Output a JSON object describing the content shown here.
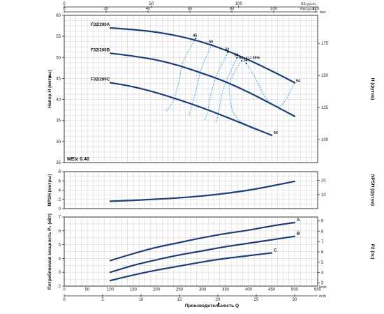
{
  "chart_data": [
    {
      "id": "head",
      "type": "line",
      "ylabel": "Напор H (метры)",
      "y2label": "H (футов)",
      "xlim": [
        0,
        550
      ],
      "ylim": [
        25,
        60
      ],
      "y_ticks": [
        25,
        30,
        35,
        40,
        45,
        50,
        55,
        60
      ],
      "y2_ticks": [
        100,
        125,
        150,
        175
      ],
      "annotation": "MEI≥ 0.40",
      "series": [
        {
          "name": "F32/200A",
          "x": [
            100,
            150,
            200,
            250,
            300,
            350,
            400,
            450,
            500
          ],
          "y": [
            57.0,
            56.6,
            56.0,
            55.0,
            53.6,
            51.7,
            49.4,
            46.8,
            44.0
          ]
        },
        {
          "name": "F32/200B",
          "x": [
            100,
            150,
            200,
            250,
            300,
            350,
            400,
            450,
            500
          ],
          "y": [
            51.0,
            50.3,
            49.4,
            48.0,
            46.2,
            44.2,
            41.7,
            38.9,
            36.0
          ]
        },
        {
          "name": "F32/200C",
          "x": [
            100,
            150,
            200,
            250,
            300,
            350,
            400,
            450
          ],
          "y": [
            44.0,
            43.0,
            41.6,
            39.9,
            38.0,
            35.9,
            33.7,
            31.5
          ]
        }
      ],
      "efficiency": [
        {
          "label": "45",
          "x": [
            285,
            258,
            250,
            238,
            220
          ],
          "y": [
            54.5,
            49.0,
            45.0,
            40.0,
            37.0
          ]
        },
        {
          "label": "50",
          "x": [
            320,
            298,
            288,
            278,
            270
          ],
          "y": [
            53.0,
            47.5,
            43.0,
            39.0,
            36.0
          ]
        },
        {
          "label": "52",
          "x": [
            355,
            330,
            318,
            312,
            305
          ],
          "y": [
            51.2,
            45.5,
            41.0,
            37.5,
            35.0
          ]
        },
        {
          "label": "53",
          "x": [
            375,
            350,
            340,
            335,
            330
          ],
          "y": [
            49.9,
            44.0,
            40.0,
            37.0,
            34.5
          ]
        },
        {
          "label": "54",
          "x": [
            385,
            360,
            360,
            372,
            400,
            430,
            450
          ],
          "y": [
            49.2,
            44.4,
            40.0,
            36.0,
            33.5,
            32.3,
            31.5
          ]
        },
        {
          "label": "54",
          "x": [
            395,
            415,
            440,
            470,
            500
          ],
          "y": [
            48.6,
            45.0,
            40.0,
            38.5,
            44.0
          ]
        }
      ],
      "efficiency_note": "η = 55%"
    },
    {
      "id": "npsh",
      "type": "line",
      "ylabel": "NPSH (метры)",
      "y2label": "NPSH (футов)",
      "xlim": [
        0,
        550
      ],
      "ylim": [
        0,
        8
      ],
      "y_ticks": [
        0,
        2,
        4,
        6,
        8
      ],
      "y2_ticks": [
        10,
        20
      ],
      "series": [
        {
          "x": [
            100,
            150,
            200,
            250,
            300,
            350,
            400,
            450,
            500
          ],
          "y": [
            1.6,
            1.8,
            2.05,
            2.35,
            2.75,
            3.3,
            4.0,
            4.9,
            5.9
          ]
        }
      ]
    },
    {
      "id": "power",
      "type": "line",
      "ylabel": "Потребляемая мощность P₂ (кВт)",
      "y2label": "P2 (лс)",
      "xlabel": "Производительность Q",
      "xlim": [
        0,
        550
      ],
      "ylim": [
        2,
        7
      ],
      "x_ticks": [
        0,
        50,
        100,
        150,
        200,
        250,
        300,
        350,
        400,
        450,
        500,
        550
      ],
      "x_unit": "l/min",
      "y_ticks": [
        2,
        3,
        4,
        5,
        6,
        7
      ],
      "y2_ticks": [
        3,
        4,
        5,
        6,
        7,
        8,
        9
      ],
      "series": [
        {
          "name": "A",
          "x": [
            100,
            150,
            200,
            250,
            300,
            350,
            400,
            450,
            500
          ],
          "y": [
            3.85,
            4.35,
            4.8,
            5.15,
            5.5,
            5.8,
            6.05,
            6.35,
            6.6
          ]
        },
        {
          "name": "B",
          "x": [
            100,
            150,
            200,
            250,
            300,
            350,
            400,
            450,
            500
          ],
          "y": [
            3.0,
            3.5,
            3.9,
            4.25,
            4.55,
            4.85,
            5.1,
            5.35,
            5.6
          ]
        },
        {
          "name": "C",
          "x": [
            100,
            150,
            200,
            250,
            300,
            350,
            400,
            450
          ],
          "y": [
            2.4,
            2.8,
            3.15,
            3.45,
            3.75,
            4.0,
            4.2,
            4.4
          ]
        }
      ]
    }
  ],
  "top_axes": [
    {
      "unit": "US g.p.m.",
      "ticks": [
        0,
        50,
        100,
        150
      ]
    },
    {
      "unit": "Imp g.p.m.",
      "ticks": [
        0,
        20,
        40,
        60,
        80,
        100,
        120
      ]
    }
  ],
  "bottom_axes": [
    {
      "unit": "m³/h",
      "ticks": [
        0,
        5,
        10,
        15,
        20,
        25,
        30
      ]
    }
  ],
  "head_y2_unit": "feet"
}
